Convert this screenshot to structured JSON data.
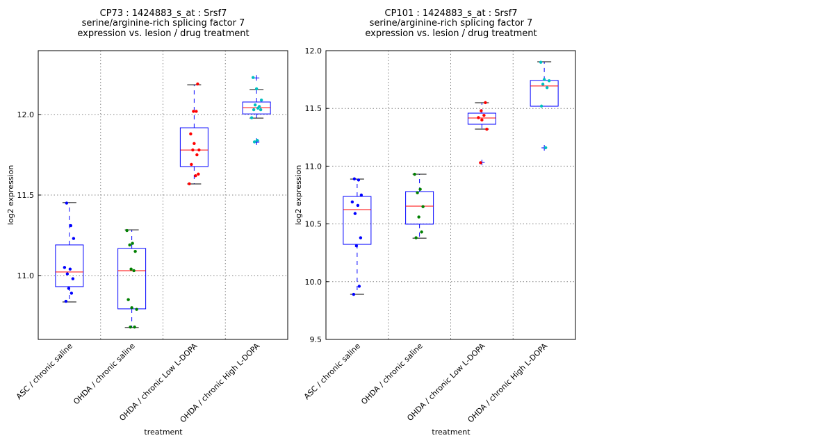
{
  "chart_data": [
    {
      "type": "box",
      "title_lines": [
        "CP73 : 1424883_s_at : Srsf7",
        "serine/arginine-rich splicing factor 7",
        "expression vs. lesion / drug treatment"
      ],
      "xlabel": "treatment",
      "ylabel": "log2 expression",
      "ylim": [
        10.603,
        12.397
      ],
      "yticks": [
        11.0,
        11.5,
        12.0
      ],
      "ytick_labels": [
        "11.0",
        "11.5",
        "12.0"
      ],
      "grid": true,
      "categories": [
        "ASC / chronic saline",
        "OHDA / chronic saline",
        "OHDA / chronic Low L-DOPA",
        "OHDA / chronic High L-DOPA"
      ],
      "groups": [
        {
          "color": "#0000ff",
          "whisker_low": 10.836,
          "q1": 10.931,
          "median": 11.022,
          "q3": 11.19,
          "whisker_high": 11.453,
          "outliers": [],
          "points": [
            11.45,
            11.31,
            11.23,
            11.05,
            11.04,
            11.01,
            10.98,
            10.92,
            10.89,
            10.84
          ]
        },
        {
          "color": "#008000",
          "whisker_low": 10.677,
          "q1": 10.793,
          "median": 11.03,
          "q3": 11.168,
          "whisker_high": 11.284,
          "outliers": [],
          "points": [
            11.28,
            11.2,
            11.19,
            11.15,
            11.04,
            11.03,
            10.85,
            10.8,
            10.79,
            10.68,
            10.68
          ]
        },
        {
          "color": "#ff0000",
          "whisker_low": 11.569,
          "q1": 11.677,
          "median": 11.78,
          "q3": 11.918,
          "whisker_high": 12.185,
          "outliers": [],
          "points": [
            12.19,
            12.02,
            12.02,
            11.88,
            11.82,
            11.78,
            11.78,
            11.75,
            11.69,
            11.62,
            11.63,
            11.57
          ]
        },
        {
          "color": "#00bfbf",
          "whisker_low": 11.978,
          "q1": 12.004,
          "median": 12.043,
          "q3": 12.078,
          "whisker_high": 12.155,
          "outliers": [
            12.228,
            11.836,
            11.828
          ],
          "points": [
            12.23,
            12.16,
            12.09,
            12.06,
            12.05,
            12.03,
            12.04,
            12.03,
            11.98,
            11.84,
            11.83
          ]
        }
      ]
    },
    {
      "type": "box",
      "title_lines": [
        "CP101 : 1424883_s_at : Srsf7",
        "serine/arginine-rich splicing factor 7",
        "expression vs. lesion / drug treatment"
      ],
      "xlabel": "treatment",
      "ylabel": "log2 expression",
      "ylim": [
        9.5,
        12.0
      ],
      "yticks": [
        9.5,
        10.0,
        10.5,
        11.0,
        11.5,
        12.0
      ],
      "ytick_labels": [
        "9.5",
        "10.0",
        "10.5",
        "11.0",
        "11.5",
        "12.0"
      ],
      "grid": true,
      "categories": [
        "ASC / chronic saline",
        "OHDA / chronic saline",
        "OHDA / chronic Low L-DOPA",
        "OHDA / chronic High L-DOPA"
      ],
      "groups": [
        {
          "color": "#0000ff",
          "whisker_low": 9.891,
          "q1": 10.323,
          "median": 10.624,
          "q3": 10.738,
          "whisker_high": 10.888,
          "outliers": [],
          "points": [
            10.89,
            10.88,
            10.75,
            10.69,
            10.66,
            10.59,
            10.38,
            10.31,
            9.96,
            9.89
          ]
        },
        {
          "color": "#008000",
          "whisker_low": 10.377,
          "q1": 10.498,
          "median": 10.654,
          "q3": 10.78,
          "whisker_high": 10.93,
          "outliers": [],
          "points": [
            10.93,
            10.8,
            10.77,
            10.65,
            10.56,
            10.43,
            10.38
          ]
        },
        {
          "color": "#ff0000",
          "whisker_low": 11.321,
          "q1": 11.363,
          "median": 11.417,
          "q3": 11.459,
          "whisker_high": 11.549,
          "outliers": [
            11.032
          ],
          "points": [
            11.55,
            11.48,
            11.44,
            11.42,
            11.4,
            11.32,
            11.03
          ]
        },
        {
          "color": "#00bfbf",
          "whisker_low": 11.519,
          "q1": 11.519,
          "median": 11.694,
          "q3": 11.742,
          "whisker_high": 11.904,
          "outliers": [
            11.159
          ],
          "points": [
            11.9,
            11.75,
            11.74,
            11.71,
            11.68,
            11.52,
            11.16
          ]
        }
      ]
    }
  ]
}
